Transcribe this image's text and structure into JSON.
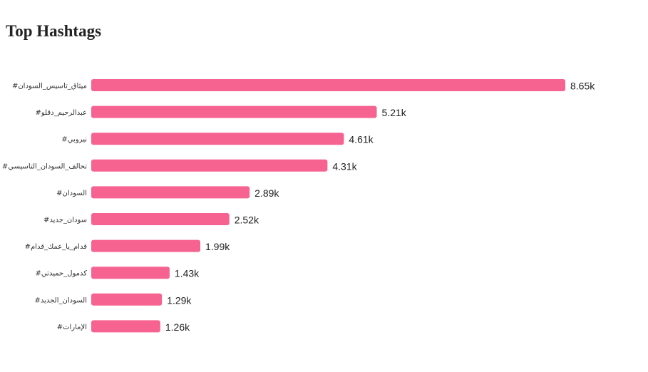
{
  "header": {
    "title": "Top Hashtags"
  },
  "chart_data": {
    "type": "bar",
    "orientation": "horizontal",
    "title": "Top Hashtags",
    "bar_color": "#f76391",
    "categories": [
      "#ميثاق_تاسيس_السودان",
      "#عبدالرحيم_دقلو",
      "#نيروبي",
      "#تحالف_السودان_التاسيسي",
      "#السودان",
      "#سودان_جديد",
      "#قدام_يا_عمك_قدام",
      "#كدمول_حميدتي",
      "#السودان_الجديد",
      "#الإمارات"
    ],
    "values": [
      8650,
      5210,
      4610,
      4310,
      2890,
      2520,
      1990,
      1430,
      1290,
      1260
    ],
    "value_labels": [
      "8.65k",
      "5.21k",
      "4.61k",
      "4.31k",
      "2.89k",
      "2.52k",
      "1.99k",
      "1.43k",
      "1.29k",
      "1.26k"
    ],
    "grid": false
  }
}
